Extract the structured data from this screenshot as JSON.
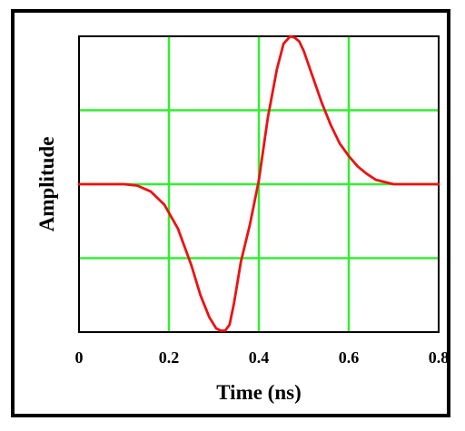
{
  "chart_data": {
    "type": "line",
    "title": "",
    "xlabel": "Time (ns)",
    "ylabel": "Amplitude",
    "xlim": [
      0,
      0.8
    ],
    "ylim": [
      -2,
      2
    ],
    "x_ticks": [
      0,
      0.2,
      0.4,
      0.6,
      0.8
    ],
    "x_tick_labels": [
      "0",
      "0.2",
      "0.4",
      "0.6",
      "0.8"
    ],
    "y_gridlines": [
      -1,
      0,
      1
    ],
    "grid": true,
    "grid_color": "#33ee33",
    "frame_color": "#000000",
    "series": [
      {
        "color": "#ee1111",
        "x": [
          0,
          0.05,
          0.1,
          0.13,
          0.16,
          0.19,
          0.22,
          0.25,
          0.27,
          0.29,
          0.305,
          0.315,
          0.325,
          0.335,
          0.345,
          0.36,
          0.38,
          0.4,
          0.42,
          0.44,
          0.455,
          0.47,
          0.48,
          0.49,
          0.5,
          0.52,
          0.54,
          0.56,
          0.58,
          0.6,
          0.62,
          0.64,
          0.66,
          0.68,
          0.7,
          0.73,
          0.76,
          0.8
        ],
        "y": [
          0,
          0,
          0,
          -0.02,
          -0.1,
          -0.28,
          -0.6,
          -1.1,
          -1.5,
          -1.8,
          -1.95,
          -1.98,
          -1.98,
          -1.9,
          -1.6,
          -1.05,
          -0.55,
          0.05,
          0.9,
          1.55,
          1.9,
          2.0,
          1.98,
          1.93,
          1.8,
          1.45,
          1.1,
          0.8,
          0.55,
          0.38,
          0.24,
          0.14,
          0.06,
          0.03,
          0.0,
          0.0,
          0.0,
          0.0
        ]
      }
    ]
  }
}
